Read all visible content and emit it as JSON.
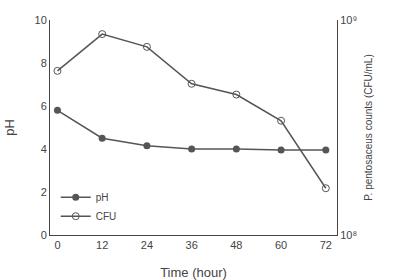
{
  "chart_data": {
    "type": "line",
    "x": [
      0,
      12,
      24,
      36,
      48,
      60,
      72
    ],
    "xlabel": "Time (hour)",
    "ylabel": "pH",
    "y2label": "P. pentosaceus counts (CFU/mL)",
    "xlim": [
      -2,
      75
    ],
    "xticks": [
      0,
      12,
      24,
      36,
      48,
      60,
      72
    ],
    "ylim": [
      0,
      10
    ],
    "yticks": [
      0,
      2,
      4,
      6,
      8,
      10
    ],
    "y2lim": [
      100000000,
      1000000000
    ],
    "y2ticks": [
      {
        "value": 100000000,
        "label": "10⁸"
      },
      {
        "value": 1000000000,
        "label": "10⁹"
      }
    ],
    "log": "y2",
    "grid": false,
    "legend": "lower left",
    "series": [
      {
        "name": "pH",
        "color": "#555555",
        "marker": "circle",
        "values": [
          5.8,
          4.5,
          4.15,
          4.0,
          4.0,
          3.95,
          3.95
        ]
      },
      {
        "name": "CFU",
        "color": "#555555",
        "marker": "circle-open",
        "axis": "y2",
        "values": [
          580000000,
          860000000,
          750000000,
          505000000,
          450000000,
          340000000,
          165000000
        ]
      }
    ]
  }
}
